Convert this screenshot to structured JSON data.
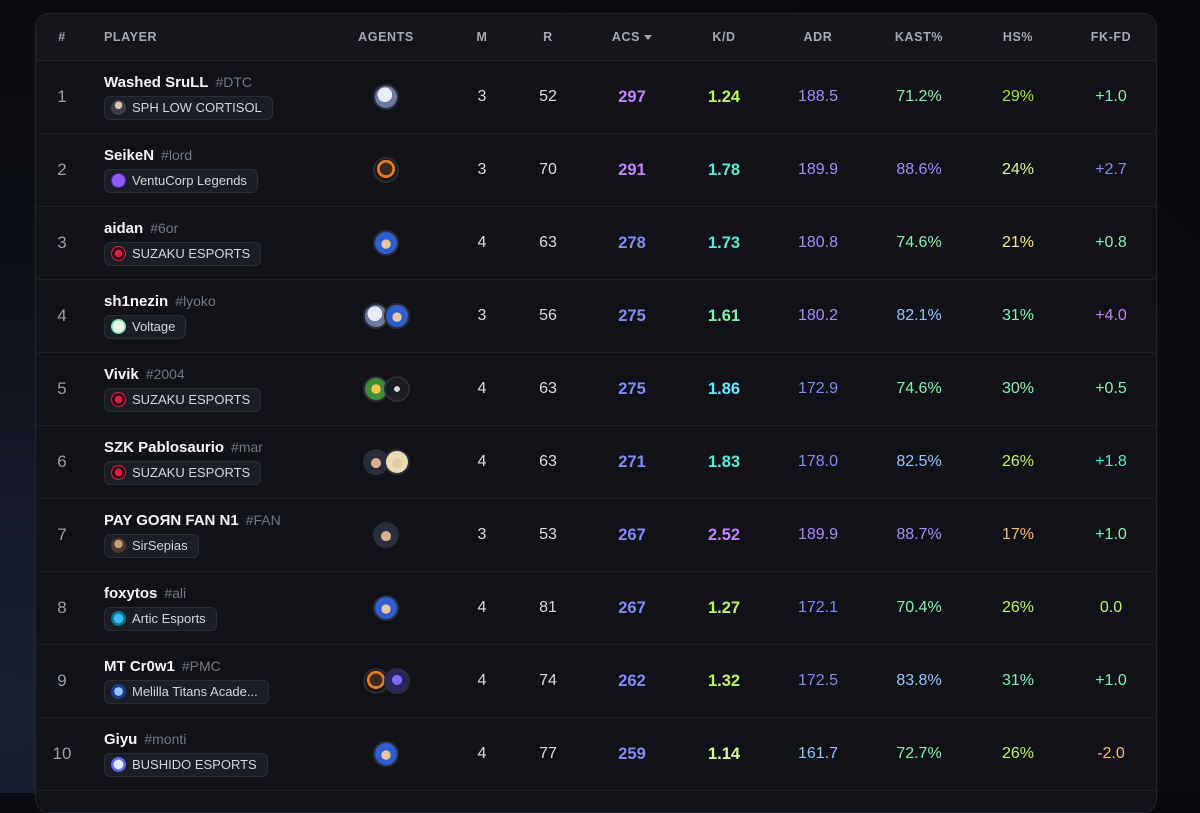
{
  "table": {
    "columns": {
      "rank": "#",
      "player": "PLAYER",
      "agents": "AGENTS",
      "m": "M",
      "r": "R",
      "acs": "ACS",
      "kd": "K/D",
      "adr": "ADR",
      "kast": "KAST%",
      "hs": "HS%",
      "fkfd": "FK-FD"
    },
    "sorted_by": "ACS",
    "sort_direction": "descending",
    "rows": [
      {
        "rank": "1",
        "name": "Washed SruLL",
        "tag": "#DTC",
        "team": "SPH LOW CORTISOL",
        "team_logo": "player-avatar-logo",
        "agents": [
          "agent-portrait-white-hair"
        ],
        "m": "3",
        "r": "52",
        "acs": "297",
        "kd": "1.24",
        "adr": "188.5",
        "kast": "71.2%",
        "hs": "29%",
        "fkfd": "+1.0",
        "colors": {
          "acs": "#c084fc",
          "kd": "#bef264",
          "adr": "#a78bfa",
          "kast": "#86efac",
          "hs": "#a3e635",
          "fkfd": "#86efac"
        }
      },
      {
        "rank": "2",
        "name": "SeikeN",
        "tag": "#lord",
        "team": "VentuCorp Legends",
        "team_logo": "v-logo",
        "agents": [
          "agent-portrait-dark-fire"
        ],
        "m": "3",
        "r": "70",
        "acs": "291",
        "kd": "1.78",
        "adr": "189.9",
        "kast": "88.6%",
        "hs": "24%",
        "fkfd": "+2.7",
        "colors": {
          "acs": "#c084fc",
          "kd": "#5eead4",
          "adr": "#a78bfa",
          "kast": "#a78bfa",
          "hs": "#d9f99d",
          "fkfd": "#818cf8"
        }
      },
      {
        "rank": "3",
        "name": "aidan",
        "tag": "#6or",
        "team": "SUZAKU ESPORTS",
        "team_logo": "suzaku-logo",
        "agents": [
          "agent-portrait-blue-hair"
        ],
        "m": "4",
        "r": "63",
        "acs": "278",
        "kd": "1.73",
        "adr": "180.8",
        "kast": "74.6%",
        "hs": "21%",
        "fkfd": "+0.8",
        "colors": {
          "acs": "#818cf8",
          "kd": "#5eead4",
          "adr": "#a78bfa",
          "kast": "#86efac",
          "hs": "#fde68a",
          "fkfd": "#86efac"
        }
      },
      {
        "rank": "4",
        "name": "sh1nezin",
        "tag": "#lyoko",
        "team": "Voltage",
        "team_logo": "voltage-logo",
        "agents": [
          "agent-portrait-white-hair",
          "agent-portrait-blue-hair"
        ],
        "m": "3",
        "r": "56",
        "acs": "275",
        "kd": "1.61",
        "adr": "180.2",
        "kast": "82.1%",
        "hs": "31%",
        "fkfd": "+4.0",
        "colors": {
          "acs": "#818cf8",
          "kd": "#86efac",
          "adr": "#a78bfa",
          "kast": "#93c5fd",
          "hs": "#86efac",
          "fkfd": "#c084fc"
        }
      },
      {
        "rank": "5",
        "name": "Vivik",
        "tag": "#2004",
        "team": "SUZAKU ESPORTS",
        "team_logo": "suzaku-logo",
        "agents": [
          "agent-portrait-green-mask",
          "agent-portrait-dark-hood"
        ],
        "m": "4",
        "r": "63",
        "acs": "275",
        "kd": "1.86",
        "adr": "172.9",
        "kast": "74.6%",
        "hs": "30%",
        "fkfd": "+0.5",
        "colors": {
          "acs": "#818cf8",
          "kd": "#67e8f9",
          "adr": "#818cf8",
          "kast": "#86efac",
          "hs": "#86efac",
          "fkfd": "#86efac"
        }
      },
      {
        "rank": "6",
        "name": "SZK Pablosaurio",
        "tag": "#mar",
        "team": "SUZAKU ESPORTS",
        "team_logo": "suzaku-logo",
        "agents": [
          "agent-portrait-dark-hair",
          "agent-portrait-blonde"
        ],
        "m": "4",
        "r": "63",
        "acs": "271",
        "kd": "1.83",
        "adr": "178.0",
        "kast": "82.5%",
        "hs": "26%",
        "fkfd": "+1.8",
        "colors": {
          "acs": "#818cf8",
          "kd": "#5eead4",
          "adr": "#818cf8",
          "kast": "#93c5fd",
          "hs": "#bef264",
          "fkfd": "#5eead4"
        }
      },
      {
        "rank": "7",
        "name": "PAY GOЯN FAN N1",
        "tag": "#FAN",
        "team": "SirSepias",
        "team_logo": "sirsepias-logo",
        "agents": [
          "agent-portrait-dark-hair"
        ],
        "m": "3",
        "r": "53",
        "acs": "267",
        "kd": "2.52",
        "adr": "189.9",
        "kast": "88.7%",
        "hs": "17%",
        "fkfd": "+1.0",
        "colors": {
          "acs": "#818cf8",
          "kd": "#c084fc",
          "adr": "#a78bfa",
          "kast": "#a78bfa",
          "hs": "#fdba74",
          "fkfd": "#86efac"
        }
      },
      {
        "rank": "8",
        "name": "foxytos",
        "tag": "#ali",
        "team": "Artic Esports",
        "team_logo": "artic-logo",
        "agents": [
          "agent-portrait-blue-hair"
        ],
        "m": "4",
        "r": "81",
        "acs": "267",
        "kd": "1.27",
        "adr": "172.1",
        "kast": "70.4%",
        "hs": "26%",
        "fkfd": "0.0",
        "colors": {
          "acs": "#818cf8",
          "kd": "#bef264",
          "adr": "#818cf8",
          "kast": "#86efac",
          "hs": "#bef264",
          "fkfd": "#bef264"
        }
      },
      {
        "rank": "9",
        "name": "MT Cr0w1",
        "tag": "#PMC",
        "team": "Melilla Titans Acade...",
        "team_logo": "titans-logo",
        "agents": [
          "agent-portrait-dark-fire",
          "agent-portrait-purple-visor"
        ],
        "m": "4",
        "r": "74",
        "acs": "262",
        "kd": "1.32",
        "adr": "172.5",
        "kast": "83.8%",
        "hs": "31%",
        "fkfd": "+1.0",
        "colors": {
          "acs": "#818cf8",
          "kd": "#bef264",
          "adr": "#818cf8",
          "kast": "#93c5fd",
          "hs": "#86efac",
          "fkfd": "#86efac"
        }
      },
      {
        "rank": "10",
        "name": "Giyu",
        "tag": "#monti",
        "team": "BUSHIDO ESPORTS",
        "team_logo": "bushido-logo",
        "agents": [
          "agent-portrait-blue-hair"
        ],
        "m": "4",
        "r": "77",
        "acs": "259",
        "kd": "1.14",
        "adr": "161.7",
        "kast": "72.7%",
        "hs": "26%",
        "fkfd": "-2.0",
        "colors": {
          "acs": "#818cf8",
          "kd": "#d9f99d",
          "adr": "#93c5fd",
          "kast": "#86efac",
          "hs": "#bef264",
          "fkfd": "#fdba74"
        }
      }
    ]
  }
}
